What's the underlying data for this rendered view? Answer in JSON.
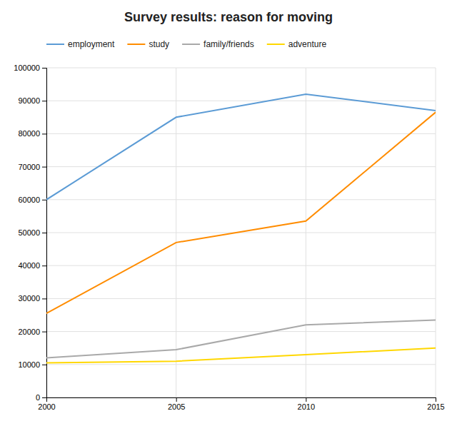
{
  "chart_data": {
    "type": "line",
    "title": "Survey results: reason for moving",
    "x": [
      2000,
      2005,
      2010,
      2015
    ],
    "series": [
      {
        "name": "employment",
        "color": "#5B9BD5",
        "values": [
          60000,
          85000,
          92000,
          87000
        ]
      },
      {
        "name": "study",
        "color": "#FF8C00",
        "values": [
          25500,
          47000,
          53500,
          86500
        ]
      },
      {
        "name": "family/friends",
        "color": "#A9A9A9",
        "values": [
          12000,
          14500,
          22000,
          23500
        ]
      },
      {
        "name": "adventure",
        "color": "#FFD700",
        "values": [
          10500,
          11000,
          13000,
          15000
        ]
      }
    ],
    "xlim": [
      2000,
      2015
    ],
    "xticks": [
      2000,
      2005,
      2010,
      2015
    ],
    "ylim": [
      0,
      100000
    ],
    "yticks": [
      0,
      10000,
      20000,
      30000,
      40000,
      50000,
      60000,
      70000,
      80000,
      90000,
      100000
    ],
    "grid": true,
    "legend": "top"
  }
}
